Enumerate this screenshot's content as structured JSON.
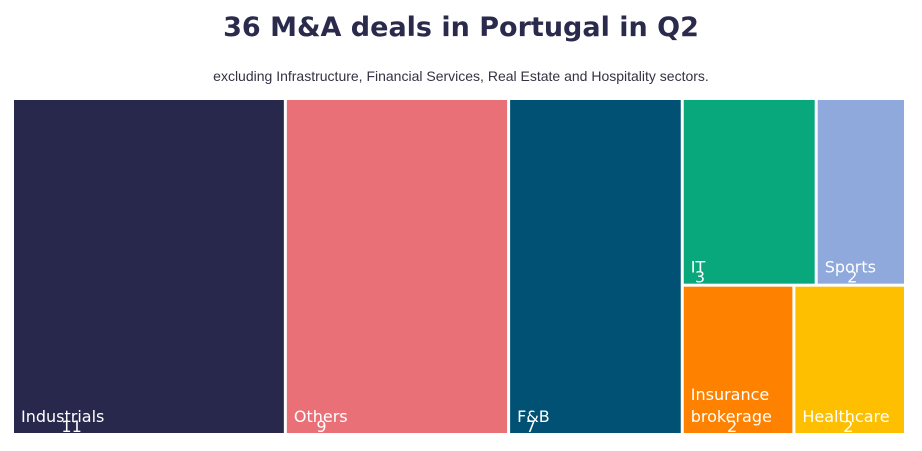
{
  "chart_data": {
    "type": "treemap",
    "title": "36 M&A deals in Portugal in Q2",
    "subtitle": "excluding Infrastructure, Financial Services, Real Estate and Hospitality sectors.",
    "items": [
      {
        "name": "Industrials",
        "value": 11,
        "color": "#28284d"
      },
      {
        "name": "Others",
        "value": 9,
        "color": "#e97077"
      },
      {
        "name": "F&B",
        "value": 7,
        "color": "#005174"
      },
      {
        "name": "IT",
        "value": 3,
        "color": "#08a77c"
      },
      {
        "name": "Sports",
        "value": 2,
        "color": "#8fa9dc"
      },
      {
        "name": "Insurance brokerage",
        "value": 2,
        "color": "#fe8100"
      },
      {
        "name": "Healthcare",
        "value": 2,
        "color": "#fdbf00"
      }
    ]
  }
}
